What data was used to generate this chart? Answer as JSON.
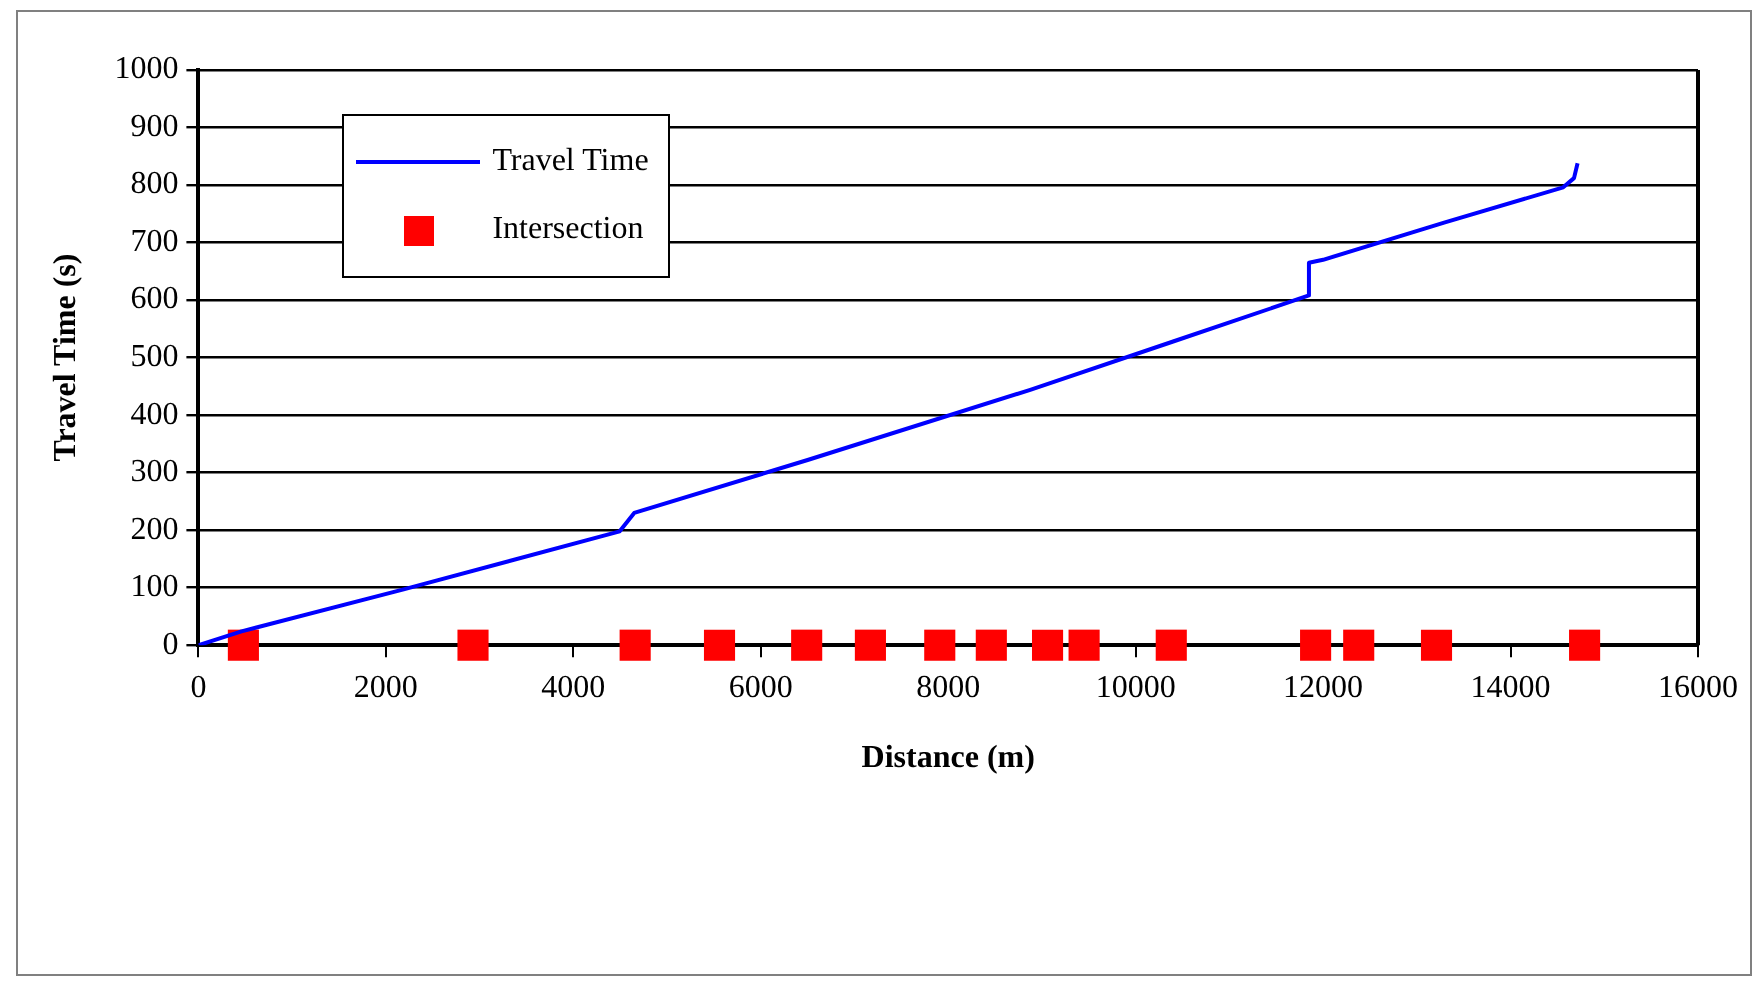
{
  "chart_data": {
    "type": "line",
    "xlabel": "Distance (m)",
    "ylabel": "Travel Time (s)",
    "xlim": [
      0,
      16000
    ],
    "xticks": [
      0,
      2000,
      4000,
      6000,
      8000,
      10000,
      12000,
      14000,
      16000
    ],
    "ylim": [
      0,
      1000
    ],
    "yticks": [
      0,
      100,
      200,
      300,
      400,
      500,
      600,
      700,
      800,
      900,
      1000
    ],
    "grid": "y",
    "legend": "top left",
    "series": [
      {
        "name": "Travel Time",
        "color": "#0000ff",
        "marker": "none",
        "x": [
          0,
          460,
          2190,
          4495,
          4650,
          6500,
          8875,
          10400,
          11849,
          11849,
          12000,
          13300,
          14562,
          14677,
          14715
        ],
        "values": [
          0,
          24,
          97,
          198,
          230,
          322,
          444,
          528,
          608,
          665,
          670,
          735,
          796,
          812,
          838
        ]
      },
      {
        "name": "Intersection",
        "type": "scatter",
        "color": "#ff0000",
        "marker": "square",
        "x": [
          480,
          2930,
          4660,
          5560,
          6490,
          7170,
          7910,
          8460,
          9060,
          9450,
          10380,
          11920,
          12380,
          13210,
          14790
        ],
        "values": [
          0,
          0,
          0,
          0,
          0,
          0,
          0,
          0,
          0,
          0,
          0,
          0,
          0,
          0,
          0
        ]
      }
    ]
  }
}
